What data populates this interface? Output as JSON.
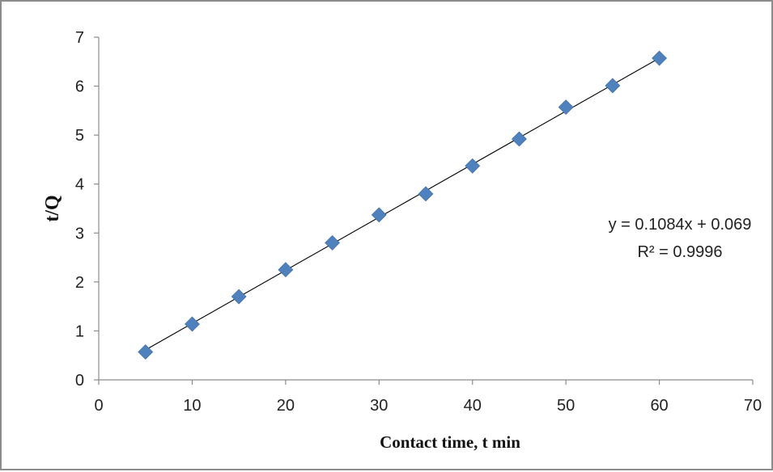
{
  "chart_data": {
    "type": "scatter",
    "xlabel": "Contact time, t min",
    "ylabel": "t/Q",
    "xlim": [
      0,
      70
    ],
    "ylim": [
      0,
      7
    ],
    "xticks": [
      0,
      10,
      20,
      30,
      40,
      50,
      60,
      70
    ],
    "yticks": [
      0,
      1,
      2,
      3,
      4,
      5,
      6,
      7
    ],
    "grid": false,
    "series": [
      {
        "marker": "diamond",
        "color": "#4f81bd",
        "x": [
          5,
          10,
          15,
          20,
          25,
          30,
          35,
          40,
          45,
          50,
          55,
          60
        ],
        "y": [
          0.57,
          1.14,
          1.7,
          2.25,
          2.8,
          3.37,
          3.8,
          4.37,
          4.92,
          5.57,
          6.01,
          6.57
        ]
      }
    ],
    "trendline": {
      "slope": 0.1084,
      "intercept": 0.069,
      "x_range": [
        5,
        60
      ],
      "color": "#000000"
    },
    "annotations": {
      "equation": "y = 0.1084x + 0.069",
      "r_squared": "R² = 0.9996"
    }
  }
}
